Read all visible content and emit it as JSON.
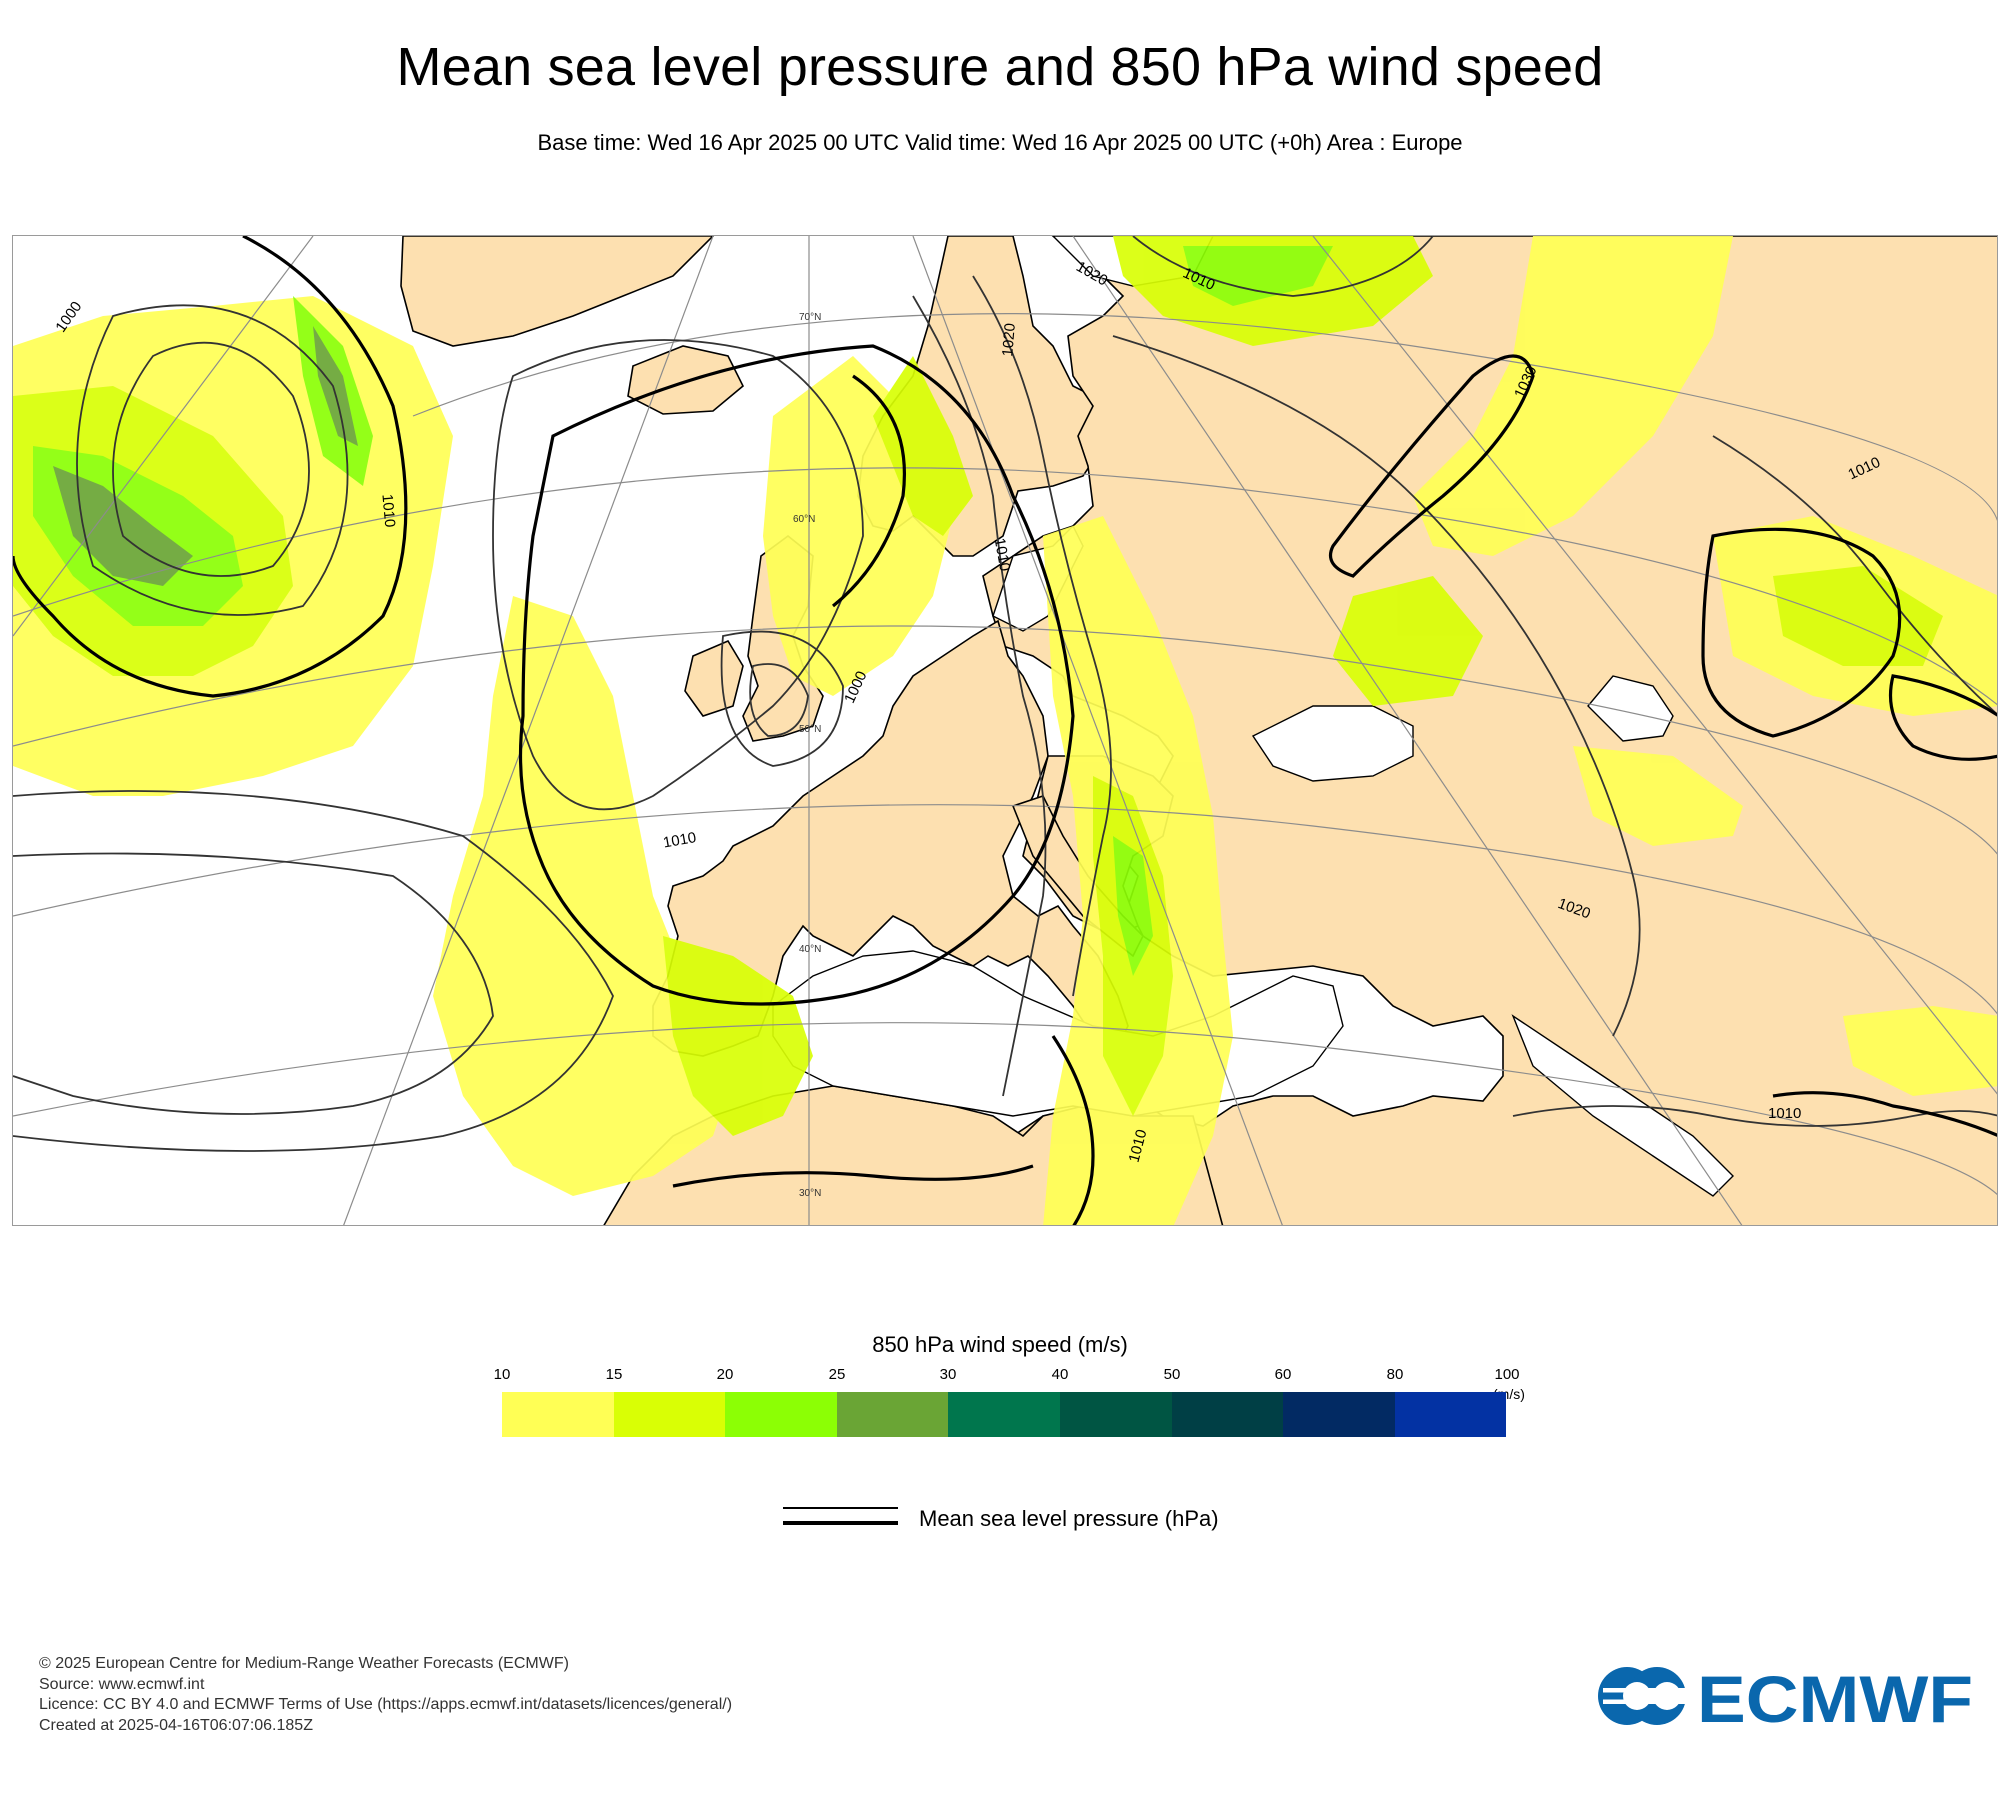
{
  "header": {
    "title": "Mean sea level pressure and 850 hPa wind speed",
    "subtitle": "Base time: Wed 16 Apr 2025 00 UTC Valid time: Wed 16 Apr 2025 00 UTC (+0h) Area : Europe"
  },
  "map": {
    "region": "Europe",
    "colors": {
      "ocean": "#ffffff",
      "land": "#fde0b0",
      "coastline": "#000000",
      "graticule": "#8c8c8c",
      "isobar": "#333333"
    },
    "latitude_labels": [
      "70°N",
      "60°N",
      "50°N",
      "40°N",
      "30°N"
    ],
    "isobar_labels": [
      "1000",
      "1010",
      "1020",
      "1030"
    ],
    "isobar_labels_shown": [
      "1000",
      "1010",
      "1020",
      "1010",
      "1010",
      "1020",
      "1030",
      "1010",
      "1000",
      "1010",
      "1020",
      "1010",
      "1010"
    ]
  },
  "legend": {
    "title": "850 hPa wind speed (m/s)",
    "ticks": [
      "10",
      "15",
      "20",
      "25",
      "30",
      "40",
      "50",
      "60",
      "80",
      "100"
    ],
    "unit": "(m/s)",
    "colors": [
      "#ffff55",
      "#d9ff05",
      "#8cff05",
      "#6aa535",
      "#00764d",
      "#005543",
      "#003f45",
      "#022a63",
      "#0332a3"
    ],
    "msl_label": "Mean sea level pressure (hPa)"
  },
  "footer": {
    "lines": [
      "© 2025 European Centre for Medium-Range Weather Forecasts (ECMWF)",
      "Source: www.ecmwf.int",
      "Licence: CC BY 4.0 and ECMWF Terms of Use (https://apps.ecmwf.int/datasets/licences/general/)",
      "Created at 2025-04-16T06:07:06.185Z"
    ]
  },
  "logo": {
    "text": "ECMWF",
    "color": "#0a67ad"
  }
}
